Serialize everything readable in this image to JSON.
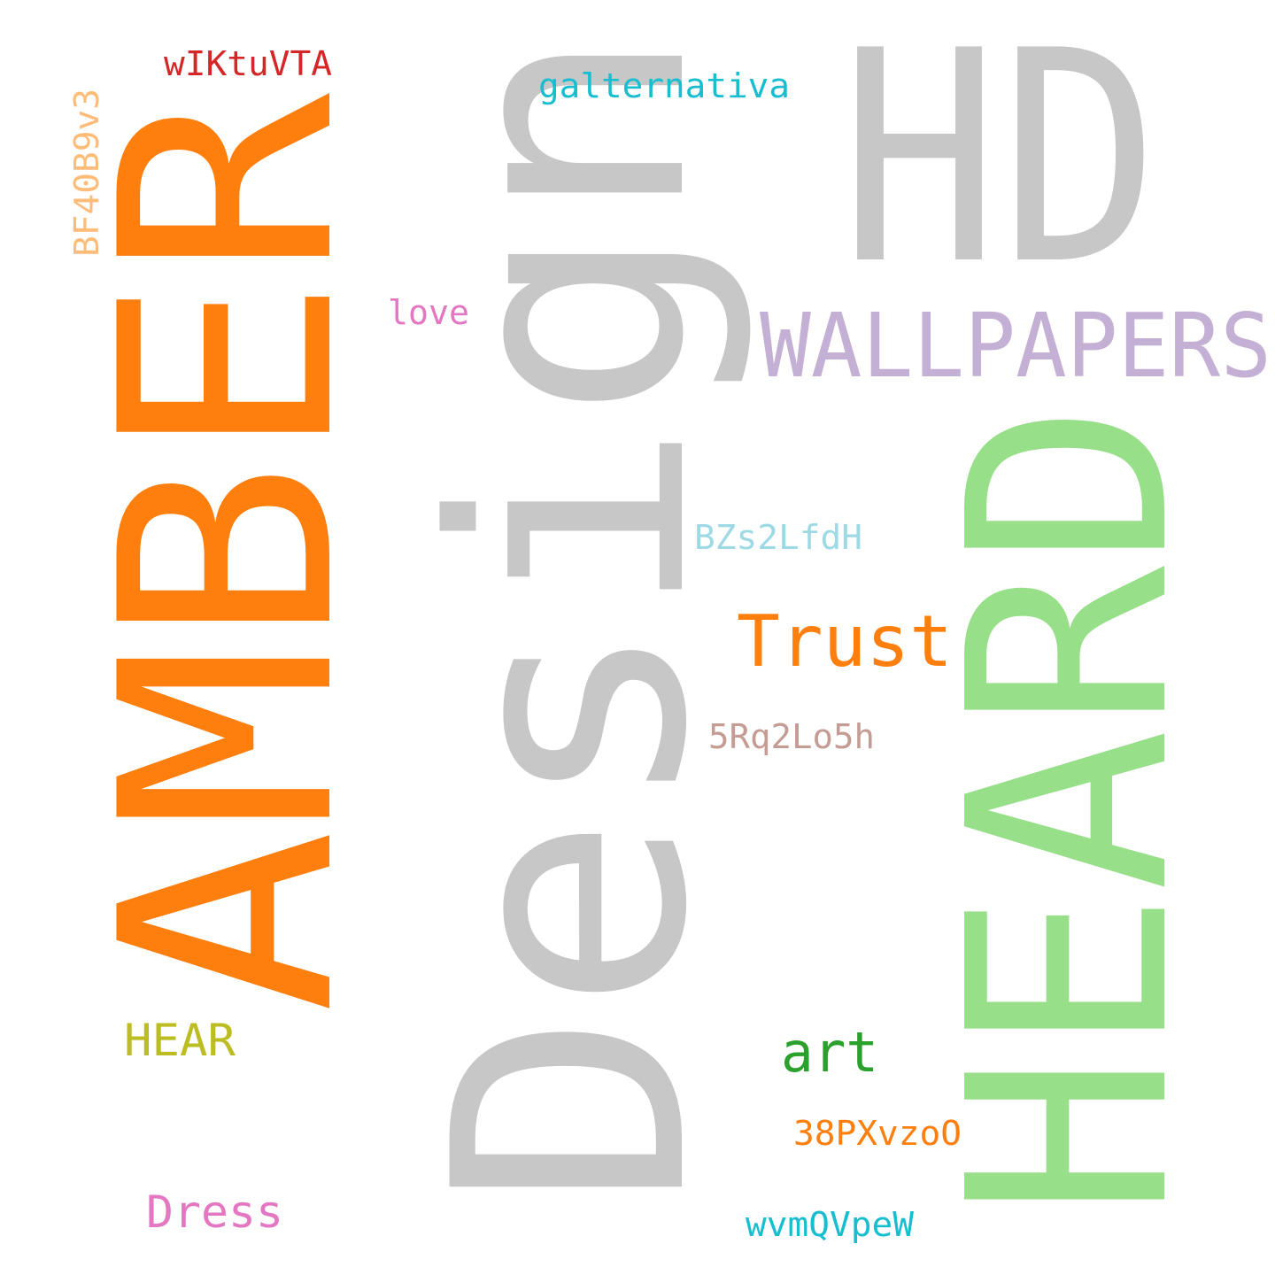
{
  "background_color": "#ffffff",
  "words": {
    "design": {
      "text": "Design",
      "color": "#c7c7c7"
    },
    "amber": {
      "text": "AMBER",
      "color": "#ff7f0e"
    },
    "heard": {
      "text": "HEARD",
      "color": "#98df8a"
    },
    "hd": {
      "text": "HD",
      "color": "#c7c7c7"
    },
    "wallpapers": {
      "text": "WALLPAPERS",
      "color": "#c5b0d5"
    },
    "trust": {
      "text": "Trust",
      "color": "#ff7f0e"
    },
    "art": {
      "text": "art",
      "color": "#2ca02c"
    },
    "hear": {
      "text": "HEAR",
      "color": "#bcbd22"
    },
    "dress": {
      "text": "Dress",
      "color": "#e377c2"
    },
    "galternativa": {
      "text": "galternativa",
      "color": "#17becf"
    },
    "wiktuvta": {
      "text": "wIKtuVTA",
      "color": "#d62728"
    },
    "bf40b9v3": {
      "text": "BF40B9v3",
      "color": "#ffbb78"
    },
    "love": {
      "text": "love",
      "color": "#e377c2"
    },
    "bzs2lfdh": {
      "text": "BZs2LfdH",
      "color": "#9edae5"
    },
    "rq2lo5h": {
      "text": "5Rq2Lo5h",
      "color": "#c49c94"
    },
    "pxvzoo": {
      "text": "38PXvzoO",
      "color": "#ff7f0e"
    },
    "wvmqvpew": {
      "text": "wvmQVpeW",
      "color": "#17becf"
    }
  }
}
